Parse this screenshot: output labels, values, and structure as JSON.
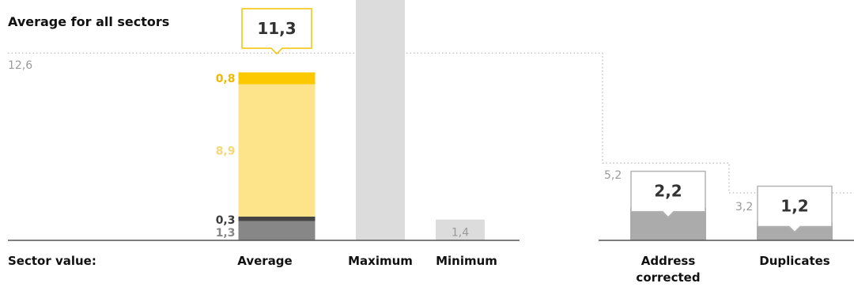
{
  "chart_data": {
    "type": "bar",
    "title": "Average for all sectors",
    "row_label": "Sector value:",
    "categories": [
      "Average",
      "Maximum",
      "Minimum",
      "Address corrected",
      "Duplicates"
    ],
    "category_label_lines": {
      "Average": [
        "Average"
      ],
      "Maximum": [
        "Maximum"
      ],
      "Minimum": [
        "Minimum"
      ],
      "Address corrected": [
        "Address",
        "corrected"
      ],
      "Duplicates": [
        "Duplicates"
      ]
    },
    "sector_average_line": [
      {
        "category": "Average",
        "value": 12.6,
        "label": "12,6"
      },
      {
        "category": "Address corrected",
        "value": 5.2,
        "label": "5,2"
      },
      {
        "category": "Duplicates",
        "value": 3.2,
        "label": "3,2"
      }
    ],
    "bars": [
      {
        "category": "Average",
        "total_label": "11,3",
        "segments": [
          {
            "value": 1.3,
            "label": "1,3",
            "color": "#878787",
            "label_color": "#878787"
          },
          {
            "value": 0.3,
            "label": "0,3",
            "color": "#444444",
            "label_color": "#3a3a3a"
          },
          {
            "value": 8.9,
            "label": "8,9",
            "color": "#fde48a",
            "label_color": "#f5d77a"
          },
          {
            "value": 0.8,
            "label": "0,8",
            "color": "#fcc800",
            "label_color": "#f2b800"
          }
        ]
      },
      {
        "category": "Maximum",
        "value": 15,
        "color": "#dcdcdc",
        "clipped_at_top": true
      },
      {
        "category": "Minimum",
        "value": 1.4,
        "label": "1,4",
        "color": "#dcdcdc",
        "label_color": "#9a9a9a"
      },
      {
        "category": "Address corrected",
        "value": 2.2,
        "label": "2,2",
        "color": "#ababab",
        "callout": true
      },
      {
        "category": "Duplicates",
        "value": 1.2,
        "label": "1,2",
        "color": "#ababab",
        "callout": true
      }
    ],
    "colors": {
      "axis": "#555555",
      "average_line": "#b9b9b9",
      "average_label": "#9a9a9a",
      "callout_border_yellow": "#f3c200",
      "callout_border_gray": "#b3b3b3",
      "value_text": "#333333"
    }
  }
}
